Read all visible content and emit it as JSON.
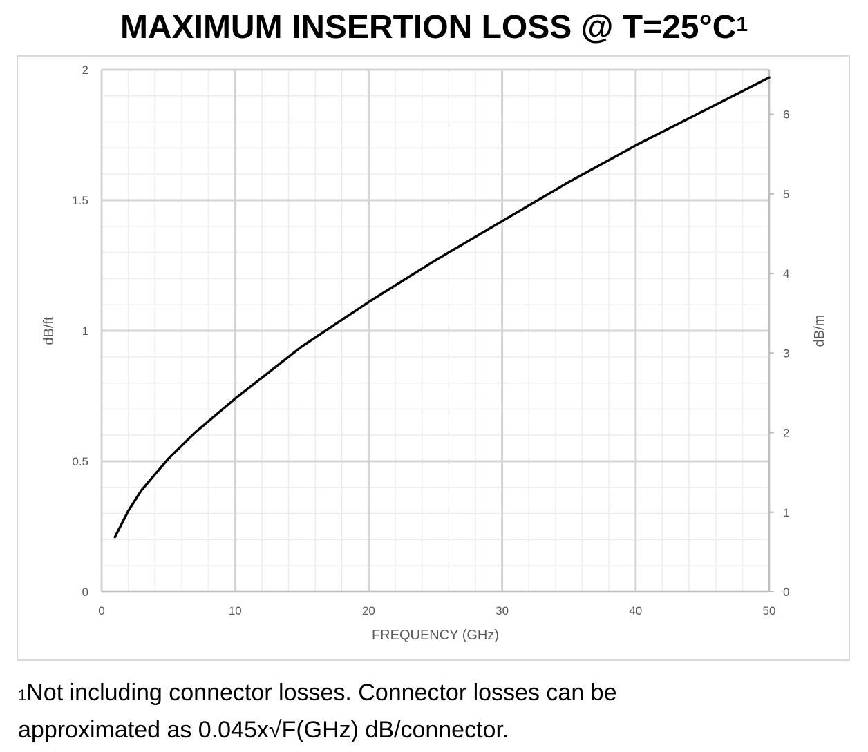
{
  "chart_data": {
    "type": "line",
    "title": "MAXIMUM INSERTION LOSS @ T=25°C",
    "title_superscript": "1",
    "xlabel": "FREQUENCY (GHz)",
    "ylabel": "dB/ft",
    "y2label": "dB/m",
    "xlim": [
      0,
      50
    ],
    "ylim": [
      0,
      2
    ],
    "y2lim": [
      0,
      6.56
    ],
    "xticks": [
      "0",
      "10",
      "20",
      "30",
      "40",
      "50"
    ],
    "yticks": [
      "0",
      "0.5",
      "1",
      "1.5",
      "2"
    ],
    "y2ticks": [
      "0",
      "1",
      "2",
      "3",
      "4",
      "5",
      "6"
    ],
    "grid": true,
    "series": [
      {
        "color": "#000000",
        "x": [
          1,
          2,
          3,
          5,
          7,
          10,
          15,
          20,
          25,
          30,
          35,
          40,
          45,
          50
        ],
        "y": [
          0.21,
          0.31,
          0.39,
          0.51,
          0.61,
          0.74,
          0.94,
          1.11,
          1.27,
          1.42,
          1.57,
          1.71,
          1.84,
          1.97
        ]
      }
    ]
  },
  "footnote": {
    "marker": "1",
    "line1": "Not including connector losses.  Connector losses can be",
    "line2": "approximated as 0.045x√F(GHz) dB/connector."
  }
}
